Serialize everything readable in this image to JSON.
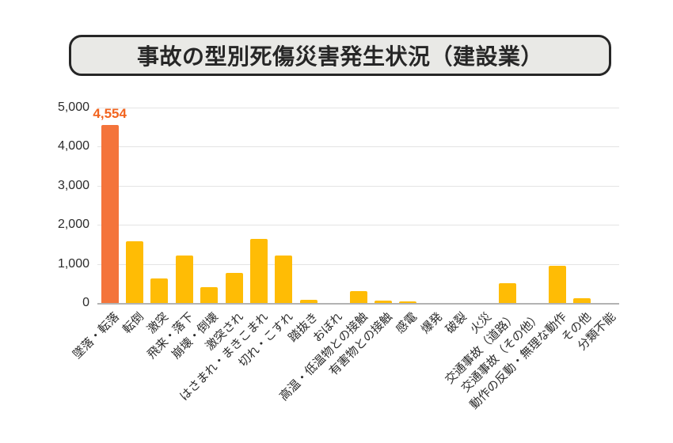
{
  "title": {
    "text": "事故の型別死傷災害発生状況（建設業）"
  },
  "chart_data": {
    "type": "bar",
    "title": "事故の型別死傷災害発生状況（建設業）",
    "categories": [
      "墜落・転落",
      "転倒",
      "激突",
      "飛来・落下",
      "崩壊・倒壊",
      "激突され",
      "はさまれ・まきこまれ",
      "切れ・こすれ",
      "踏抜き",
      "おぼれ",
      "高温・低温物との接触",
      "有害物との接触",
      "感電",
      "爆発",
      "破裂",
      "火災",
      "交通事故（道路）",
      "交通事故（その他）",
      "動作の反動・無理な動作",
      "その他",
      "分類不能"
    ],
    "values": [
      4554,
      1570,
      620,
      1210,
      400,
      770,
      1640,
      1210,
      90,
      0,
      300,
      70,
      40,
      0,
      0,
      0,
      500,
      0,
      960,
      115,
      0
    ],
    "highlight_index": 0,
    "value_labels": {
      "0": "4,554"
    },
    "xlabel": "",
    "ylabel": "",
    "ylim": [
      0,
      5000
    ],
    "ytick_step": 1000,
    "ytick_labels": [
      "0",
      "1,000",
      "2,000",
      "3,000",
      "4,000",
      "5,000"
    ],
    "grid": true,
    "legend": "none",
    "colors": {
      "bar_default": "#ffbc05",
      "bar_highlight": "#f4743b",
      "value_label": "#f2641f",
      "grid_line": "#e4e4e4",
      "baseline": "#b3b3b3",
      "axis_text": "#2b2b2b",
      "title_text": "#262626",
      "title_box_bg": "#e9e9e6",
      "title_box_border": "#262626",
      "background": "#ffffff"
    }
  }
}
